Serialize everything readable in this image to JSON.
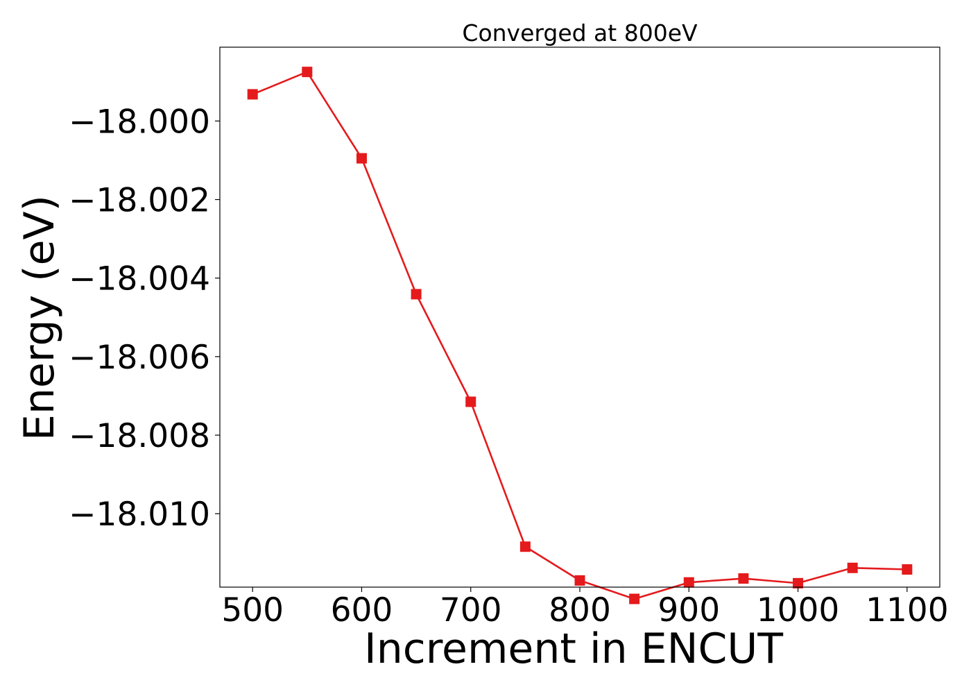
{
  "chart_data": {
    "type": "line",
    "title": "Converged at 800eV",
    "xlabel": "Increment in ENCUT",
    "ylabel": "Energy (eV)",
    "xlim": [
      470,
      1130
    ],
    "ylim": [
      -18.01187,
      -17.99812
    ],
    "xticks": [
      500,
      600,
      700,
      800,
      900,
      1000,
      1100
    ],
    "xtick_labels": [
      "500",
      "600",
      "700",
      "800",
      "900",
      "1000",
      "1100"
    ],
    "yticks": [
      -18.0,
      -18.002,
      -18.004,
      -18.006,
      -18.008,
      -18.01
    ],
    "ytick_labels": [
      "−18.000",
      "−18.002",
      "−18.004",
      "−18.006",
      "−18.008",
      "−18.010"
    ],
    "grid": false,
    "series": [
      {
        "color": "#e41a1c",
        "marker": "square",
        "x": [
          500,
          550,
          600,
          650,
          700,
          750,
          800,
          850,
          900,
          950,
          1000,
          1050,
          1100
        ],
        "y": [
          -17.99932,
          -17.99875,
          -18.00095,
          -18.00441,
          -18.00715,
          -18.01084,
          -18.0117,
          -18.01217,
          -18.01175,
          -18.01165,
          -18.01177,
          -18.01138,
          -18.01142
        ]
      }
    ]
  }
}
